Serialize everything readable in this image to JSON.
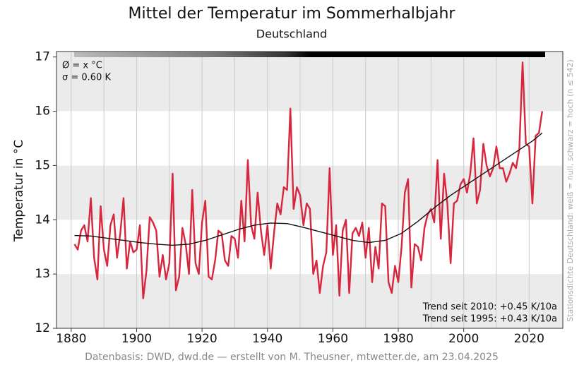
{
  "chart_data": {
    "type": "line",
    "title": "Mittel der Temperatur im Sommerhalbjahr",
    "subtitle": "Deutschland",
    "y_label": "Temperatur in °C",
    "right_label": "Stationsdichte Deutschland: weiß = null, schwarz = hoch (n ≤ 542)",
    "annotations": [
      "Ø = x °C",
      "σ = 0.60 K",
      "Trend seit 2010: +0.45 K/10a",
      "Trend seit 1995: +0.43 K/10a"
    ],
    "source": "Datenbasis: DWD, dwd.de — erstellt von M. Theusner, mtwetter.de, am 23.04.2025",
    "xlim": [
      1875.5,
      2030.3
    ],
    "ylim": [
      12,
      17.1
    ],
    "xticks": [
      1880,
      1900,
      1920,
      1940,
      1960,
      1980,
      2000,
      2020
    ],
    "xgrid": [
      1880,
      1890,
      1900,
      1910,
      1920,
      1930,
      1940,
      1950,
      1960,
      1970,
      1980,
      1990,
      2000,
      2010,
      2020
    ],
    "yticks": [
      12,
      13,
      14,
      15,
      16,
      17
    ],
    "x": [
      1881,
      1882,
      1883,
      1884,
      1885,
      1886,
      1887,
      1888,
      1889,
      1890,
      1891,
      1892,
      1893,
      1894,
      1895,
      1896,
      1897,
      1898,
      1899,
      1900,
      1901,
      1902,
      1903,
      1904,
      1905,
      1906,
      1907,
      1908,
      1909,
      1910,
      1911,
      1912,
      1913,
      1914,
      1915,
      1916,
      1917,
      1918,
      1919,
      1920,
      1921,
      1922,
      1923,
      1924,
      1925,
      1926,
      1927,
      1928,
      1929,
      1930,
      1931,
      1932,
      1933,
      1934,
      1935,
      1936,
      1937,
      1938,
      1939,
      1940,
      1941,
      1942,
      1943,
      1944,
      1945,
      1946,
      1947,
      1948,
      1949,
      1950,
      1951,
      1952,
      1953,
      1954,
      1955,
      1956,
      1957,
      1958,
      1959,
      1960,
      1961,
      1962,
      1963,
      1964,
      1965,
      1966,
      1967,
      1968,
      1969,
      1970,
      1971,
      1972,
      1973,
      1974,
      1975,
      1976,
      1977,
      1978,
      1979,
      1980,
      1981,
      1982,
      1983,
      1984,
      1985,
      1986,
      1987,
      1988,
      1989,
      1990,
      1991,
      1992,
      1993,
      1994,
      1995,
      1996,
      1997,
      1998,
      1999,
      2000,
      2001,
      2002,
      2003,
      2004,
      2005,
      2006,
      2007,
      2008,
      2009,
      2010,
      2011,
      2012,
      2013,
      2014,
      2015,
      2016,
      2017,
      2018,
      2019,
      2020,
      2021,
      2022,
      2023,
      2024
    ],
    "series": [
      {
        "color": "#d7263d",
        "values": [
          13.55,
          13.45,
          13.8,
          13.9,
          13.6,
          14.4,
          13.3,
          12.9,
          14.25,
          13.45,
          13.15,
          13.9,
          14.1,
          13.3,
          13.75,
          14.4,
          13.1,
          13.6,
          13.4,
          13.45,
          13.9,
          12.55,
          13.05,
          14.05,
          13.95,
          13.8,
          12.95,
          13.35,
          12.9,
          13.2,
          14.85,
          12.7,
          12.95,
          13.85,
          13.55,
          13.0,
          14.55,
          13.2,
          13.0,
          13.95,
          14.35,
          12.95,
          12.9,
          13.25,
          13.8,
          13.75,
          13.25,
          13.15,
          13.7,
          13.65,
          13.3,
          14.35,
          13.6,
          15.1,
          13.9,
          13.65,
          14.5,
          13.8,
          13.35,
          13.9,
          13.1,
          13.75,
          14.3,
          14.1,
          14.6,
          14.55,
          16.05,
          14.2,
          14.6,
          14.45,
          13.9,
          14.3,
          14.2,
          13.0,
          13.25,
          12.65,
          13.15,
          13.4,
          14.95,
          13.35,
          13.9,
          12.6,
          13.8,
          14.0,
          12.65,
          13.75,
          13.85,
          13.7,
          13.95,
          13.3,
          13.85,
          12.85,
          13.5,
          13.1,
          14.3,
          14.25,
          12.85,
          12.65,
          13.15,
          12.85,
          13.5,
          14.5,
          14.75,
          12.75,
          13.55,
          13.5,
          13.25,
          13.85,
          14.1,
          14.2,
          13.95,
          15.1,
          13.65,
          14.85,
          14.3,
          13.2,
          14.3,
          14.35,
          14.65,
          14.75,
          14.5,
          14.85,
          15.5,
          14.3,
          14.55,
          15.4,
          15.0,
          14.8,
          14.95,
          15.35,
          14.95,
          14.95,
          14.7,
          14.85,
          15.05,
          14.95,
          15.3,
          16.9,
          15.4,
          15.35,
          14.3,
          15.55,
          15.6,
          16.0
        ]
      },
      {
        "color": "#111111",
        "x": [
          1881,
          1886,
          1891,
          1896,
          1901,
          1906,
          1911,
          1916,
          1921,
          1926,
          1931,
          1936,
          1941,
          1946,
          1951,
          1956,
          1961,
          1966,
          1971,
          1976,
          1981,
          1986,
          1991,
          1996,
          2001,
          2006,
          2011,
          2016,
          2021,
          2024
        ],
        "values": [
          13.71,
          13.7,
          13.66,
          13.62,
          13.58,
          13.55,
          13.53,
          13.55,
          13.62,
          13.72,
          13.82,
          13.9,
          13.94,
          13.93,
          13.86,
          13.78,
          13.7,
          13.62,
          13.58,
          13.62,
          13.75,
          13.97,
          14.22,
          14.45,
          14.65,
          14.85,
          15.05,
          15.25,
          15.45,
          15.6
        ]
      }
    ]
  }
}
